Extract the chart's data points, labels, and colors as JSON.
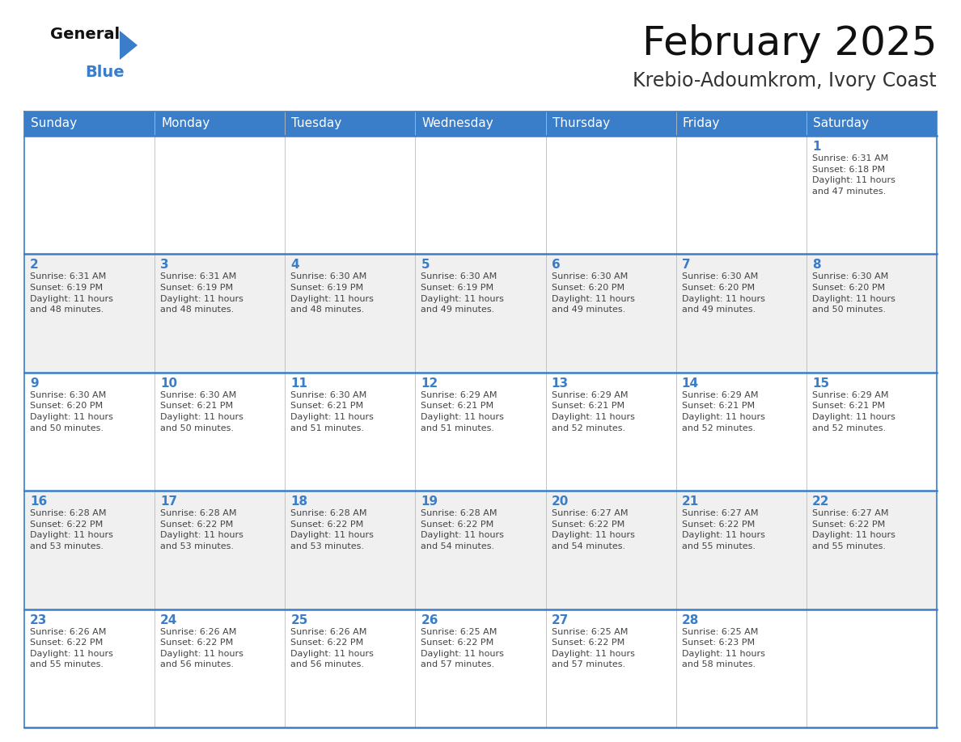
{
  "title": "February 2025",
  "subtitle": "Krebio-Adoumkrom, Ivory Coast",
  "header_color": "#3A7DC9",
  "header_text_color": "#FFFFFF",
  "cell_bg_even": "#FFFFFF",
  "cell_bg_odd": "#F0F0F0",
  "day_number_color": "#3A7DC9",
  "info_text_color": "#444444",
  "border_color": "#3A7DC9",
  "days_of_week": [
    "Sunday",
    "Monday",
    "Tuesday",
    "Wednesday",
    "Thursday",
    "Friday",
    "Saturday"
  ],
  "weeks": [
    [
      {
        "day": null,
        "info": null
      },
      {
        "day": null,
        "info": null
      },
      {
        "day": null,
        "info": null
      },
      {
        "day": null,
        "info": null
      },
      {
        "day": null,
        "info": null
      },
      {
        "day": null,
        "info": null
      },
      {
        "day": 1,
        "info": "Sunrise: 6:31 AM\nSunset: 6:18 PM\nDaylight: 11 hours\nand 47 minutes."
      }
    ],
    [
      {
        "day": 2,
        "info": "Sunrise: 6:31 AM\nSunset: 6:19 PM\nDaylight: 11 hours\nand 48 minutes."
      },
      {
        "day": 3,
        "info": "Sunrise: 6:31 AM\nSunset: 6:19 PM\nDaylight: 11 hours\nand 48 minutes."
      },
      {
        "day": 4,
        "info": "Sunrise: 6:30 AM\nSunset: 6:19 PM\nDaylight: 11 hours\nand 48 minutes."
      },
      {
        "day": 5,
        "info": "Sunrise: 6:30 AM\nSunset: 6:19 PM\nDaylight: 11 hours\nand 49 minutes."
      },
      {
        "day": 6,
        "info": "Sunrise: 6:30 AM\nSunset: 6:20 PM\nDaylight: 11 hours\nand 49 minutes."
      },
      {
        "day": 7,
        "info": "Sunrise: 6:30 AM\nSunset: 6:20 PM\nDaylight: 11 hours\nand 49 minutes."
      },
      {
        "day": 8,
        "info": "Sunrise: 6:30 AM\nSunset: 6:20 PM\nDaylight: 11 hours\nand 50 minutes."
      }
    ],
    [
      {
        "day": 9,
        "info": "Sunrise: 6:30 AM\nSunset: 6:20 PM\nDaylight: 11 hours\nand 50 minutes."
      },
      {
        "day": 10,
        "info": "Sunrise: 6:30 AM\nSunset: 6:21 PM\nDaylight: 11 hours\nand 50 minutes."
      },
      {
        "day": 11,
        "info": "Sunrise: 6:30 AM\nSunset: 6:21 PM\nDaylight: 11 hours\nand 51 minutes."
      },
      {
        "day": 12,
        "info": "Sunrise: 6:29 AM\nSunset: 6:21 PM\nDaylight: 11 hours\nand 51 minutes."
      },
      {
        "day": 13,
        "info": "Sunrise: 6:29 AM\nSunset: 6:21 PM\nDaylight: 11 hours\nand 52 minutes."
      },
      {
        "day": 14,
        "info": "Sunrise: 6:29 AM\nSunset: 6:21 PM\nDaylight: 11 hours\nand 52 minutes."
      },
      {
        "day": 15,
        "info": "Sunrise: 6:29 AM\nSunset: 6:21 PM\nDaylight: 11 hours\nand 52 minutes."
      }
    ],
    [
      {
        "day": 16,
        "info": "Sunrise: 6:28 AM\nSunset: 6:22 PM\nDaylight: 11 hours\nand 53 minutes."
      },
      {
        "day": 17,
        "info": "Sunrise: 6:28 AM\nSunset: 6:22 PM\nDaylight: 11 hours\nand 53 minutes."
      },
      {
        "day": 18,
        "info": "Sunrise: 6:28 AM\nSunset: 6:22 PM\nDaylight: 11 hours\nand 53 minutes."
      },
      {
        "day": 19,
        "info": "Sunrise: 6:28 AM\nSunset: 6:22 PM\nDaylight: 11 hours\nand 54 minutes."
      },
      {
        "day": 20,
        "info": "Sunrise: 6:27 AM\nSunset: 6:22 PM\nDaylight: 11 hours\nand 54 minutes."
      },
      {
        "day": 21,
        "info": "Sunrise: 6:27 AM\nSunset: 6:22 PM\nDaylight: 11 hours\nand 55 minutes."
      },
      {
        "day": 22,
        "info": "Sunrise: 6:27 AM\nSunset: 6:22 PM\nDaylight: 11 hours\nand 55 minutes."
      }
    ],
    [
      {
        "day": 23,
        "info": "Sunrise: 6:26 AM\nSunset: 6:22 PM\nDaylight: 11 hours\nand 55 minutes."
      },
      {
        "day": 24,
        "info": "Sunrise: 6:26 AM\nSunset: 6:22 PM\nDaylight: 11 hours\nand 56 minutes."
      },
      {
        "day": 25,
        "info": "Sunrise: 6:26 AM\nSunset: 6:22 PM\nDaylight: 11 hours\nand 56 minutes."
      },
      {
        "day": 26,
        "info": "Sunrise: 6:25 AM\nSunset: 6:22 PM\nDaylight: 11 hours\nand 57 minutes."
      },
      {
        "day": 27,
        "info": "Sunrise: 6:25 AM\nSunset: 6:22 PM\nDaylight: 11 hours\nand 57 minutes."
      },
      {
        "day": 28,
        "info": "Sunrise: 6:25 AM\nSunset: 6:23 PM\nDaylight: 11 hours\nand 58 minutes."
      },
      {
        "day": null,
        "info": null
      }
    ]
  ],
  "logo_text_general": "General",
  "logo_text_blue": "Blue",
  "logo_triangle_color": "#3A7DC9",
  "title_fontsize": 36,
  "subtitle_fontsize": 17,
  "dow_fontsize": 11,
  "day_num_fontsize": 11,
  "info_fontsize": 8
}
